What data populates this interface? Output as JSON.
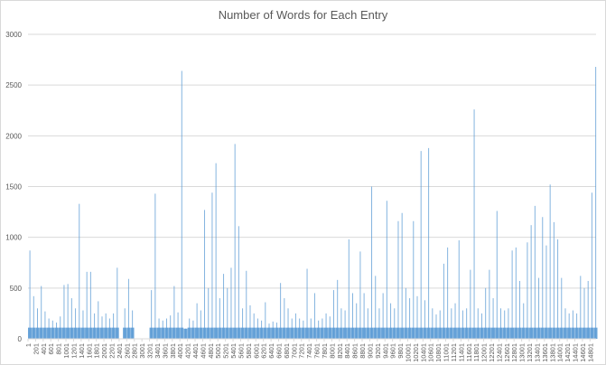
{
  "chart_data": {
    "type": "bar",
    "title": "Number of Words for Each Entry",
    "xlabel": "",
    "ylabel": "",
    "ylim": [
      0,
      3000
    ],
    "y_ticks": [
      "0",
      "500",
      "1000",
      "1500",
      "2000",
      "2500",
      "3000"
    ],
    "x_tick_labels": [
      "1",
      "201",
      "401",
      "601",
      "801",
      "1001",
      "1201",
      "1401",
      "1601",
      "1801",
      "2001",
      "2201",
      "2401",
      "2601",
      "2801",
      "3001",
      "3201",
      "3401",
      "3601",
      "3801",
      "4001",
      "4201",
      "4401",
      "4601",
      "4801",
      "5001",
      "5201",
      "5401",
      "5601",
      "5801",
      "6001",
      "6201",
      "6401",
      "6601",
      "6801",
      "7001",
      "7201",
      "7401",
      "7601",
      "7801",
      "8001",
      "8201",
      "8401",
      "8601",
      "8801",
      "9001",
      "9201",
      "9401",
      "9601",
      "9801",
      "10001",
      "10201",
      "10401",
      "10601",
      "10801",
      "11001",
      "11201",
      "11401",
      "11601",
      "11801",
      "12001",
      "12201",
      "12401",
      "12601",
      "12801",
      "13001",
      "13201",
      "13401",
      "13601",
      "13801",
      "14001",
      "14201",
      "14401",
      "14601",
      "14801"
    ],
    "grid": true,
    "color": "#5b9bd5",
    "note_values": "approximate maximum word count per block of 100 entries",
    "x": [
      1,
      101,
      201,
      301,
      401,
      501,
      601,
      701,
      801,
      901,
      1001,
      1101,
      1201,
      1301,
      1401,
      1501,
      1601,
      1701,
      1801,
      1901,
      2001,
      2101,
      2201,
      2301,
      2401,
      2501,
      2601,
      2701,
      2801,
      2901,
      3001,
      3101,
      3201,
      3301,
      3401,
      3501,
      3601,
      3701,
      3801,
      3901,
      4001,
      4101,
      4201,
      4301,
      4401,
      4501,
      4601,
      4701,
      4801,
      4901,
      5001,
      5101,
      5201,
      5301,
      5401,
      5501,
      5601,
      5701,
      5801,
      5901,
      6001,
      6101,
      6201,
      6301,
      6401,
      6501,
      6601,
      6701,
      6801,
      6901,
      7001,
      7101,
      7201,
      7301,
      7401,
      7501,
      7601,
      7701,
      7801,
      7901,
      8001,
      8101,
      8201,
      8301,
      8401,
      8501,
      8601,
      8701,
      8801,
      8901,
      9001,
      9101,
      9201,
      9301,
      9401,
      9501,
      9601,
      9701,
      9801,
      9901,
      10001,
      10101,
      10201,
      10301,
      10401,
      10501,
      10601,
      10701,
      10801,
      10901,
      11001,
      11101,
      11201,
      11301,
      11401,
      11501,
      11601,
      11701,
      11801,
      11901,
      12001,
      12101,
      12201,
      12301,
      12401,
      12501,
      12601,
      12701,
      12801,
      12901,
      13001,
      13101,
      13201,
      13301,
      13401,
      13501,
      13601,
      13701,
      13801,
      13901,
      14001,
      14101,
      14201,
      14301,
      14401,
      14501,
      14601,
      14701,
      14801,
      14901
    ],
    "values": [
      870,
      420,
      300,
      520,
      270,
      200,
      180,
      160,
      220,
      530,
      540,
      400,
      300,
      1330,
      280,
      660,
      660,
      250,
      370,
      220,
      250,
      200,
      250,
      700,
      0,
      300,
      590,
      280,
      0,
      0,
      0,
      0,
      480,
      1430,
      200,
      180,
      200,
      230,
      520,
      260,
      2640,
      100,
      200,
      180,
      350,
      280,
      1270,
      500,
      1440,
      1730,
      400,
      640,
      500,
      700,
      1920,
      1110,
      300,
      670,
      330,
      250,
      200,
      180,
      360,
      150,
      170,
      160,
      550,
      400,
      300,
      200,
      250,
      200,
      180,
      690,
      200,
      450,
      180,
      200,
      250,
      220,
      480,
      580,
      300,
      280,
      980,
      450,
      350,
      860,
      450,
      300,
      1500,
      620,
      300,
      450,
      1360,
      350,
      300,
      1160,
      1240,
      500,
      400,
      1160,
      420,
      1850,
      380,
      1880,
      300,
      240,
      280,
      740,
      900,
      300,
      350,
      970,
      280,
      300,
      680,
      2260,
      300,
      250,
      500,
      680,
      400,
      1260,
      300,
      280,
      300,
      870,
      900,
      570,
      350,
      950,
      1120,
      1310,
      600,
      1200,
      920,
      1520,
      1150,
      980,
      600,
      300,
      250,
      280,
      250,
      620,
      500,
      570,
      1440,
      2680
    ]
  }
}
